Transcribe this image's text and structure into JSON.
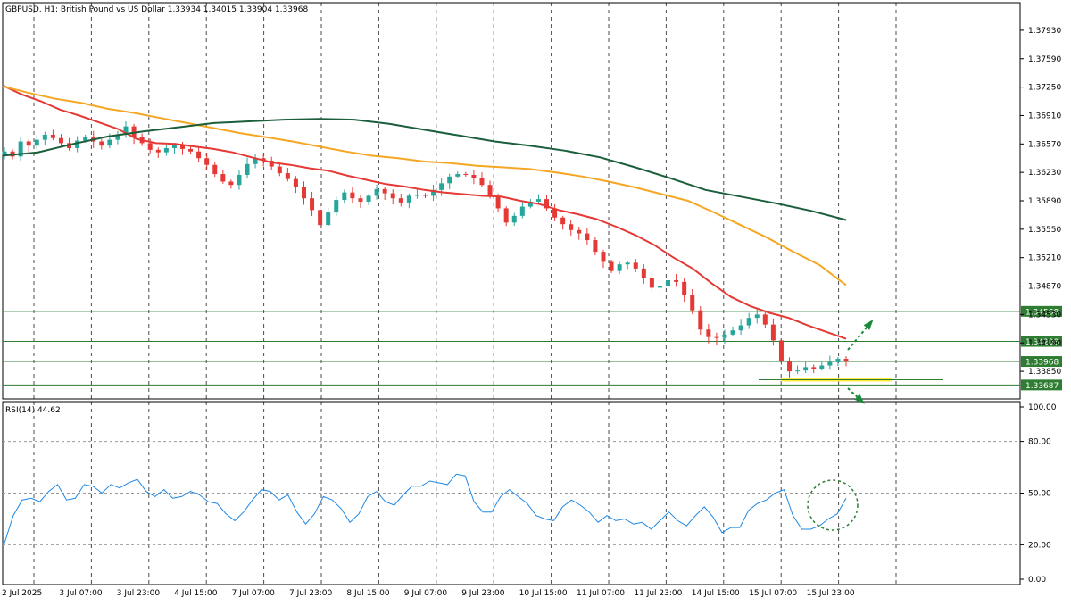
{
  "header": {
    "title": "GBPUSD, H1:  British Pound vs US Dollar  1.33934 1.34015 1.33904 1.33968"
  },
  "rsi_label": "RSI(14) 44.62",
  "colors": {
    "bull": "#26a69a",
    "bear": "#e53935",
    "ma_fast": "#e53935",
    "ma_mid": "#f5a623",
    "ma_slow": "#1b5e3b",
    "hline": "#2e7d32",
    "support": "#ffeb3b",
    "rsi": "#1e88e5",
    "arrow": "#1b8a3a"
  },
  "chart_data": [
    {
      "type": "candlestick",
      "title": "GBPUSD, H1:  British Pound vs US Dollar  1.33934 1.34015 1.33904 1.33968",
      "x_labels": [
        "2 Jul 2025",
        "3 Jul 07:00",
        "3 Jul 23:00",
        "4 Jul 15:00",
        "7 Jul 07:00",
        "7 Jul 23:00",
        "8 Jul 15:00",
        "9 Jul 07:00",
        "9 Jul 23:00",
        "10 Jul 15:00",
        "11 Jul 07:00",
        "11 Jul 23:00",
        "14 Jul 15:00",
        "15 Jul 07:00",
        "15 Jul 23:00"
      ],
      "y_ticks": [
        "1.37930",
        "1.37590",
        "1.37250",
        "1.36910",
        "1.36570",
        "1.36230",
        "1.35890",
        "1.35550",
        "1.35210",
        "1.34870",
        "1.34530",
        "1.34190",
        "1.33850"
      ],
      "ylim": [
        1.3352,
        1.3826
      ],
      "price_levels": [
        "1.34568",
        "1.34208",
        "1.33968",
        "1.33687"
      ],
      "price_path": [
        1.3648,
        1.3642,
        1.366,
        1.3655,
        1.3662,
        1.3668,
        1.3664,
        1.3658,
        1.3652,
        1.3661,
        1.3665,
        1.366,
        1.3655,
        1.3662,
        1.3668,
        1.3678,
        1.3665,
        1.3658,
        1.365,
        1.3647,
        1.3652,
        1.3656,
        1.3651,
        1.3648,
        1.364,
        1.3632,
        1.3621,
        1.3612,
        1.3608,
        1.362,
        1.3633,
        1.364,
        1.3637,
        1.363,
        1.3622,
        1.3615,
        1.3605,
        1.3592,
        1.3578,
        1.356,
        1.3575,
        1.359,
        1.3599,
        1.3592,
        1.3588,
        1.3595,
        1.3603,
        1.3598,
        1.3592,
        1.3587,
        1.3595,
        1.3596,
        1.3595,
        1.3602,
        1.361,
        1.3618,
        1.3621,
        1.362,
        1.3616,
        1.3608,
        1.3594,
        1.358,
        1.3563,
        1.3571,
        1.3582,
        1.3588,
        1.3591,
        1.358,
        1.3569,
        1.3561,
        1.3554,
        1.355,
        1.3542,
        1.3528,
        1.3516,
        1.3505,
        1.3513,
        1.3515,
        1.3508,
        1.3497,
        1.3485,
        1.3487,
        1.3494,
        1.3492,
        1.3476,
        1.3458,
        1.3435,
        1.3426,
        1.3425,
        1.3429,
        1.3434,
        1.344,
        1.3449,
        1.3453,
        1.3441,
        1.3422,
        1.3397,
        1.3385,
        1.3386,
        1.339,
        1.3388,
        1.3392,
        1.3396,
        1.34,
        1.3397
      ],
      "series": [
        {
          "name": "",
          "type": "ma",
          "values": [
            1.3727,
            1.3716,
            1.3708,
            1.3698,
            1.3691,
            1.3683,
            1.3675,
            1.3663,
            1.3658,
            1.3657,
            1.3654,
            1.3651,
            1.3647,
            1.3641,
            1.3635,
            1.3632,
            1.3628,
            1.3625,
            1.3619,
            1.3614,
            1.3609,
            1.3606,
            1.3602,
            1.3599,
            1.3597,
            1.3595,
            1.3594,
            1.3589,
            1.3585,
            1.3578,
            1.3573,
            1.3567,
            1.3558,
            1.3548,
            1.3536,
            1.3521,
            1.3508,
            1.349,
            1.3474,
            1.3463,
            1.3455,
            1.3449,
            1.344,
            1.3432,
            1.3424
          ]
        },
        {
          "name": "",
          "type": "ma",
          "values": [
            1.3726,
            1.3718,
            1.3711,
            1.3706,
            1.3699,
            1.3694,
            1.3688,
            1.3682,
            1.3676,
            1.367,
            1.3665,
            1.366,
            1.3654,
            1.3648,
            1.3643,
            1.364,
            1.3636,
            1.3634,
            1.3631,
            1.3629,
            1.3627,
            1.3623,
            1.3618,
            1.3612,
            1.3605,
            1.3597,
            1.3589,
            1.3575,
            1.356,
            1.3545,
            1.3528,
            1.3512,
            1.3488
          ]
        },
        {
          "name": "",
          "type": "ma",
          "values": [
            1.3643,
            1.3647,
            1.3657,
            1.3666,
            1.3672,
            1.3677,
            1.3682,
            1.3684,
            1.3686,
            1.3687,
            1.3686,
            1.3681,
            1.3674,
            1.3667,
            1.366,
            1.3655,
            1.3649,
            1.3641,
            1.3629,
            1.3616,
            1.3602,
            1.3594,
            1.3586,
            1.3577,
            1.3566
          ]
        }
      ],
      "annotations": {
        "support_line": "1.33750"
      }
    },
    {
      "type": "line",
      "title": "RSI(14) 44.62",
      "y_ticks": [
        "100.00",
        "80.00",
        "50.00",
        "20.00",
        "0.00"
      ],
      "ylim": [
        0,
        100
      ],
      "values": [
        21,
        37,
        46,
        47,
        45,
        51,
        55,
        46,
        47,
        55,
        54,
        50,
        55,
        53,
        56,
        58,
        51,
        48,
        52,
        47,
        48,
        51,
        49,
        45,
        44,
        38,
        34,
        39,
        46,
        52,
        51,
        46,
        49,
        39,
        32,
        38,
        48,
        46,
        41,
        33,
        38,
        48,
        51,
        45,
        43,
        49,
        54,
        54,
        57,
        56,
        55,
        61,
        60,
        45,
        39,
        39,
        48,
        52,
        48,
        44,
        37,
        35,
        34,
        42,
        46,
        43,
        39,
        33,
        37,
        34,
        35,
        32,
        33,
        29,
        34,
        39,
        34,
        31,
        37,
        42,
        36,
        27,
        30,
        30,
        40,
        44,
        46,
        50,
        52,
        37,
        29,
        29,
        31,
        35,
        38,
        47
      ]
    }
  ]
}
